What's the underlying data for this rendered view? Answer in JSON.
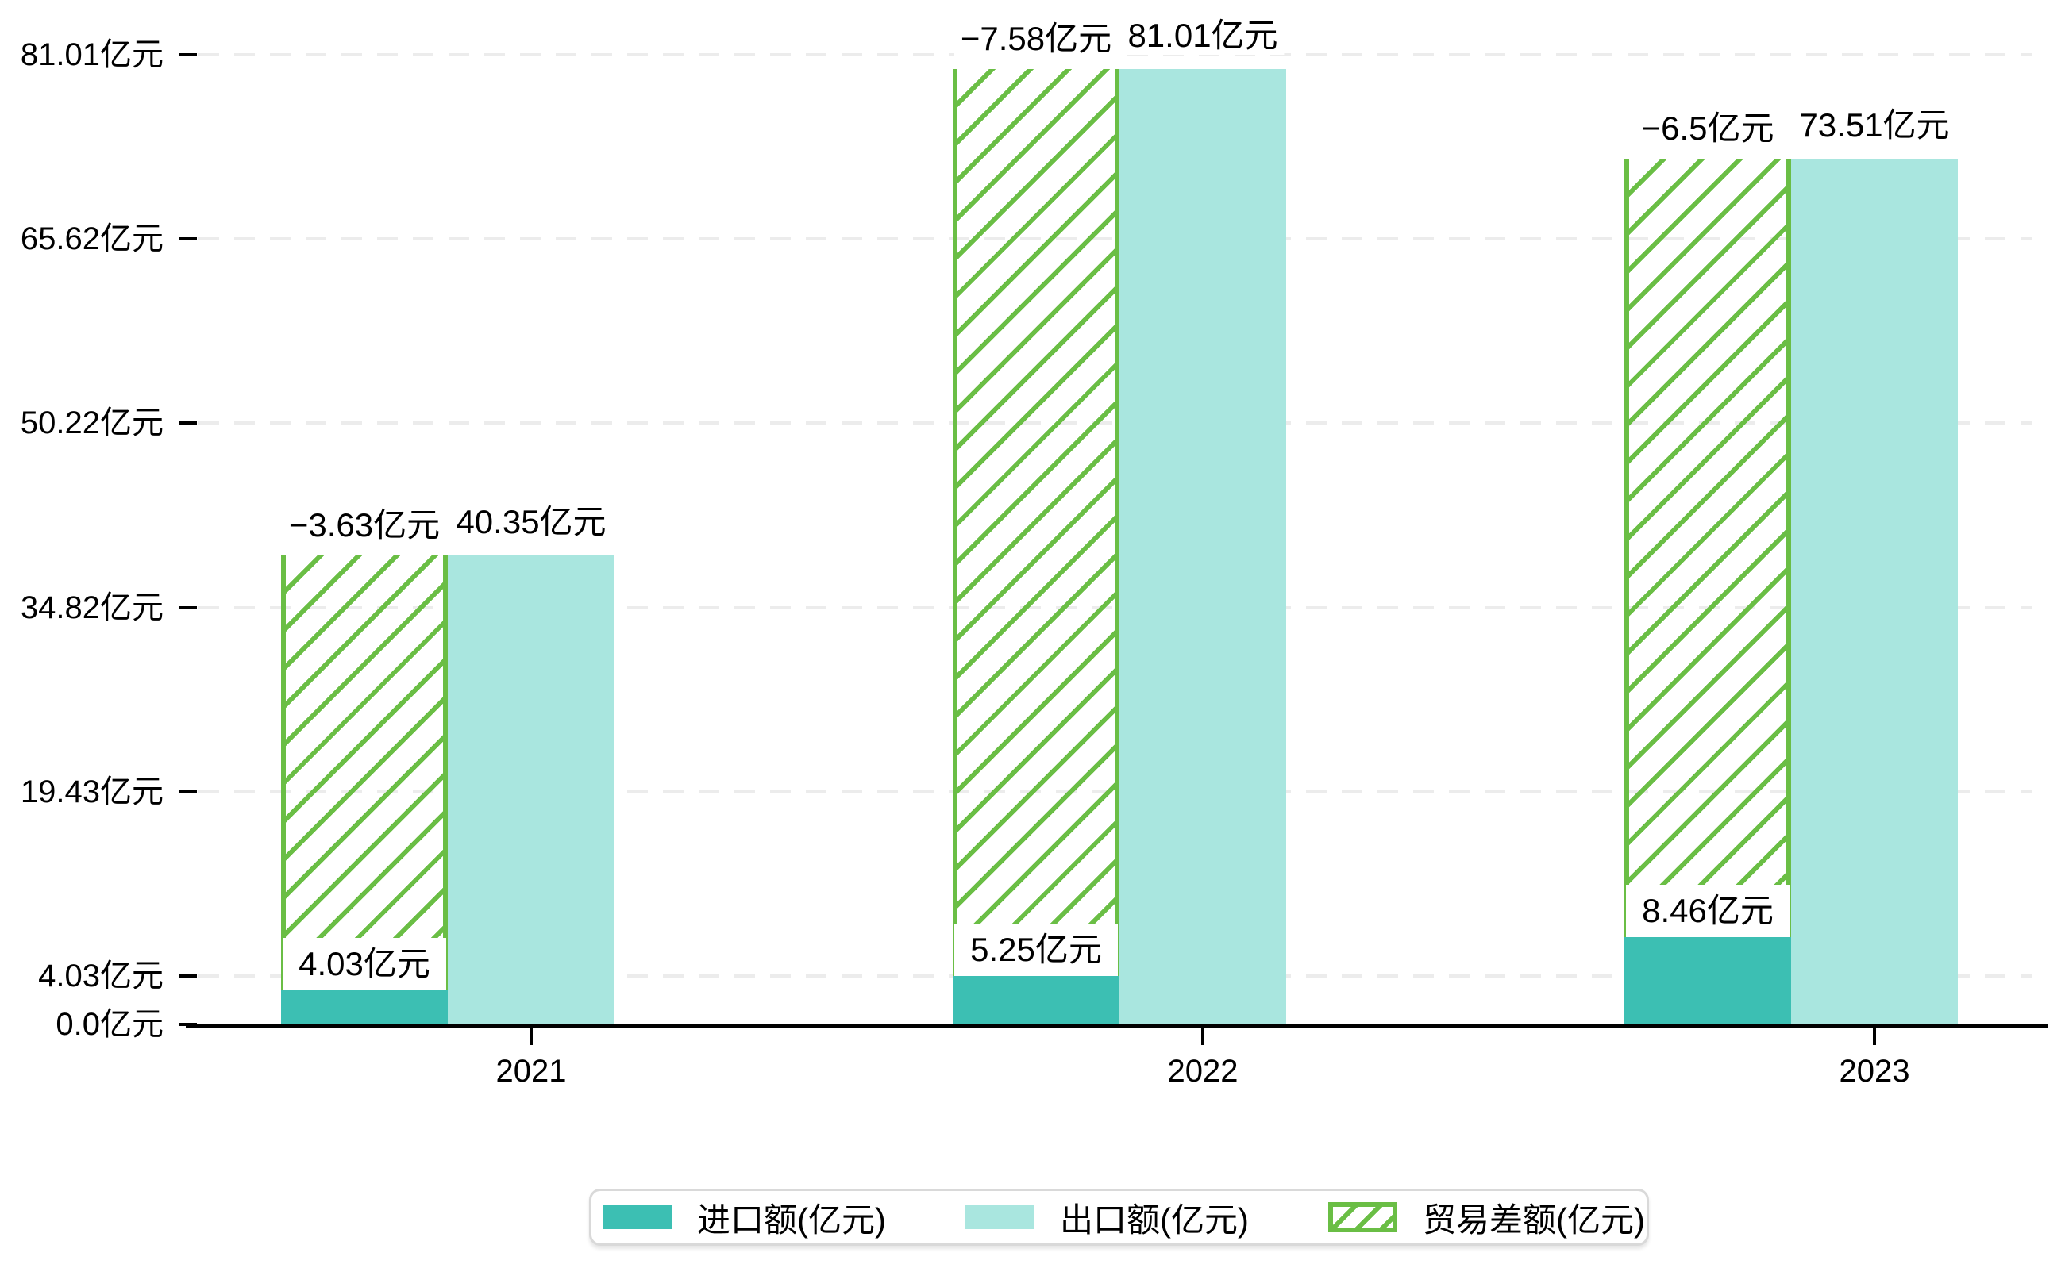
{
  "chart_data": {
    "type": "bar",
    "categories": [
      "2021",
      "2022",
      "2023"
    ],
    "series": [
      {
        "name": "进口额(亿元)",
        "role": "import",
        "style": "solid",
        "color": "#3CBFB3",
        "values": [
          4.03,
          5.25,
          8.46
        ]
      },
      {
        "name": "出口额(亿元)",
        "role": "export",
        "style": "solid",
        "color": "#A9E6DF",
        "values": [
          40.35,
          81.01,
          73.51
        ]
      },
      {
        "name": "贸易差额(亿元)",
        "role": "balance",
        "style": "hatched-outline",
        "color": "#6ABE45",
        "values": [
          -3.63,
          -7.58,
          -6.5
        ]
      }
    ],
    "data_labels": {
      "import": [
        "4.03亿元",
        "5.25亿元",
        "8.46亿元"
      ],
      "export": [
        "40.35亿元",
        "81.01亿元",
        "73.51亿元"
      ],
      "balance": [
        "−3.63亿元",
        "−7.58亿元",
        "−6.5亿元"
      ]
    },
    "y_axis": {
      "unit": "亿元",
      "tick_labels": [
        "81.01亿元",
        "65.62亿元",
        "50.22亿元",
        "34.82亿元",
        "19.43亿元",
        "4.03亿元",
        "0.0亿元"
      ],
      "tick_values": [
        81.01,
        65.62,
        50.22,
        34.82,
        19.43,
        4.03,
        0.0
      ],
      "range": [
        0,
        81.01
      ]
    },
    "x_axis": {
      "tick_labels": [
        "2021",
        "2022",
        "2023"
      ]
    },
    "grid": "horizontal-dashed",
    "legend": {
      "position": "bottom-center",
      "items": [
        {
          "label": "进口额(亿元)",
          "swatch": "import-solid"
        },
        {
          "label": "出口额(亿元)",
          "swatch": "export-solid"
        },
        {
          "label": "贸易差额(亿元)",
          "swatch": "balance-hatched"
        }
      ]
    },
    "colors": {
      "import": "#3CBFB3",
      "export": "#A9E6DF",
      "balance": "#6ABE45",
      "grid": "#ECECEC",
      "axis": "#000000",
      "label_text": "#000000",
      "legend_border": "#D9D9D9"
    }
  }
}
